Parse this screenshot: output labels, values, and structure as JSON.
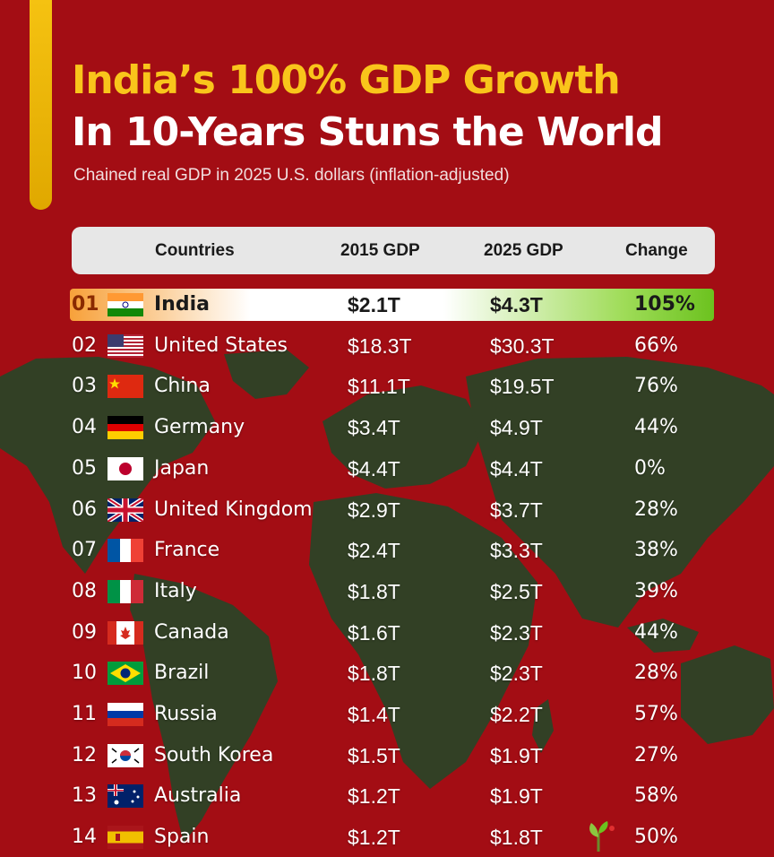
{
  "title_line1": "India’s 100% GDP Growth",
  "title_line2": "In 10-Years Stuns the World",
  "subtitle": "Chained real GDP in 2025 U.S. dollars (inflation-adjusted)",
  "colors": {
    "background": "#a30d14",
    "title_accent": "#f9c51b",
    "highlight_green": "#6cc21f",
    "highlight_orange": "#f7a13a",
    "map_land": "#1f4a28"
  },
  "chart_data": {
    "type": "table",
    "columns": [
      "Countries",
      "2015 GDP",
      "2025 GDP",
      "Change"
    ],
    "rows": [
      {
        "rank": "01",
        "flag": "india-flag-icon",
        "country": "India",
        "gdp_2015": "$2.1T",
        "gdp_2025": "$4.3T",
        "change": "105%",
        "highlighted": true
      },
      {
        "rank": "02",
        "flag": "usa-flag-icon",
        "country": "United States",
        "gdp_2015": "$18.3T",
        "gdp_2025": "$30.3T",
        "change": "66%"
      },
      {
        "rank": "03",
        "flag": "china-flag-icon",
        "country": "China",
        "gdp_2015": "$11.1T",
        "gdp_2025": "$19.5T",
        "change": "76%"
      },
      {
        "rank": "04",
        "flag": "germany-flag-icon",
        "country": "Germany",
        "gdp_2015": "$3.4T",
        "gdp_2025": "$4.9T",
        "change": "44%"
      },
      {
        "rank": "05",
        "flag": "japan-flag-icon",
        "country": "Japan",
        "gdp_2015": "$4.4T",
        "gdp_2025": "$4.4T",
        "change": "0%"
      },
      {
        "rank": "06",
        "flag": "uk-flag-icon",
        "country": "United Kingdom",
        "gdp_2015": "$2.9T",
        "gdp_2025": "$3.7T",
        "change": "28%"
      },
      {
        "rank": "07",
        "flag": "france-flag-icon",
        "country": "France",
        "gdp_2015": "$2.4T",
        "gdp_2025": "$3.3T",
        "change": "38%"
      },
      {
        "rank": "08",
        "flag": "italy-flag-icon",
        "country": "Italy",
        "gdp_2015": "$1.8T",
        "gdp_2025": "$2.5T",
        "change": "39%"
      },
      {
        "rank": "09",
        "flag": "canada-flag-icon",
        "country": "Canada",
        "gdp_2015": "$1.6T",
        "gdp_2025": "$2.3T",
        "change": "44%"
      },
      {
        "rank": "10",
        "flag": "brazil-flag-icon",
        "country": "Brazil",
        "gdp_2015": "$1.8T",
        "gdp_2025": "$2.3T",
        "change": "28%"
      },
      {
        "rank": "11",
        "flag": "russia-flag-icon",
        "country": "Russia",
        "gdp_2015": "$1.4T",
        "gdp_2025": "$2.2T",
        "change": "57%"
      },
      {
        "rank": "12",
        "flag": "south-korea-flag-icon",
        "country": "South Korea",
        "gdp_2015": "$1.5T",
        "gdp_2025": "$1.9T",
        "change": "27%"
      },
      {
        "rank": "13",
        "flag": "australia-flag-icon",
        "country": "Australia",
        "gdp_2015": "$1.2T",
        "gdp_2025": "$1.9T",
        "change": "58%"
      },
      {
        "rank": "14",
        "flag": "spain-flag-icon",
        "country": "Spain",
        "gdp_2015": "$1.2T",
        "gdp_2025": "$1.8T",
        "change": "50%"
      }
    ]
  }
}
